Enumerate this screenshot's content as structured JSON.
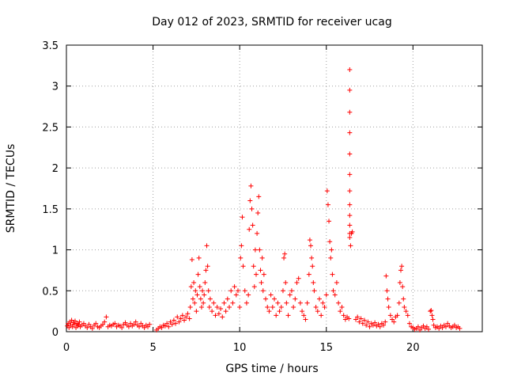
{
  "chart_data": {
    "type": "scatter",
    "title": "Day 012 of 2023, SRMTID for receiver ucag",
    "xlabel": "GPS time / hours",
    "ylabel": "SRMTID / TECUs",
    "xlim": [
      0,
      24
    ],
    "ylim": [
      0,
      3.5
    ],
    "x_ticks": [
      0,
      5,
      10,
      15,
      20
    ],
    "x_tick_labels": [
      "0",
      "5",
      "10",
      "15",
      "20"
    ],
    "y_ticks": [
      0,
      0.5,
      1,
      1.5,
      2,
      2.5,
      3,
      3.5
    ],
    "y_tick_labels": [
      "0",
      "0.5",
      "1",
      "1.5",
      "2",
      "2.5",
      "3",
      "3.5"
    ],
    "grid": true,
    "marker": "+",
    "series": [
      {
        "name": "SRMTID",
        "color": "#ff0000",
        "x": [
          0.05,
          0.1,
          0.15,
          0.2,
          0.25,
          0.3,
          0.35,
          0.4,
          0.45,
          0.5,
          0.55,
          0.6,
          0.65,
          0.7,
          0.75,
          0.8,
          0.9,
          1.0,
          1.1,
          1.2,
          1.3,
          1.4,
          1.5,
          1.6,
          1.7,
          1.8,
          1.9,
          2.0,
          2.1,
          2.2,
          2.3,
          2.4,
          2.5,
          2.6,
          2.7,
          2.8,
          2.9,
          3.0,
          3.1,
          3.2,
          3.3,
          3.4,
          3.5,
          3.6,
          3.7,
          3.8,
          3.9,
          4.0,
          4.1,
          4.2,
          4.3,
          4.4,
          4.5,
          4.6,
          4.7,
          4.8,
          5.2,
          5.3,
          5.4,
          5.5,
          5.6,
          5.7,
          5.8,
          5.9,
          6.0,
          6.1,
          6.2,
          6.3,
          6.4,
          6.5,
          6.6,
          6.7,
          6.8,
          6.9,
          7.0,
          7.1,
          7.15,
          7.2,
          7.25,
          7.3,
          7.35,
          7.4,
          7.45,
          7.5,
          7.55,
          7.6,
          7.65,
          7.7,
          7.75,
          7.8,
          7.85,
          7.9,
          7.95,
          8.0,
          8.05,
          8.1,
          8.15,
          8.2,
          8.25,
          8.3,
          8.4,
          8.5,
          8.6,
          8.7,
          8.8,
          8.9,
          9.0,
          9.1,
          9.2,
          9.3,
          9.4,
          9.5,
          9.6,
          9.7,
          9.8,
          9.9,
          10.0,
          10.05,
          10.1,
          10.15,
          10.2,
          10.3,
          10.4,
          10.5,
          10.55,
          10.6,
          10.65,
          10.7,
          10.75,
          10.8,
          10.85,
          10.9,
          10.95,
          11.0,
          11.05,
          11.1,
          11.15,
          11.2,
          11.25,
          11.3,
          11.35,
          11.4,
          11.5,
          11.6,
          11.7,
          11.8,
          11.9,
          12.0,
          12.1,
          12.2,
          12.3,
          12.4,
          12.5,
          12.55,
          12.6,
          12.65,
          12.7,
          12.8,
          12.9,
          13.0,
          13.1,
          13.2,
          13.3,
          13.4,
          13.5,
          13.6,
          13.7,
          13.8,
          13.9,
          14.0,
          14.05,
          14.1,
          14.15,
          14.2,
          14.25,
          14.3,
          14.4,
          14.5,
          14.6,
          14.7,
          14.8,
          14.9,
          15.0,
          15.05,
          15.1,
          15.15,
          15.2,
          15.25,
          15.3,
          15.35,
          15.4,
          15.5,
          15.6,
          15.7,
          15.8,
          15.9,
          16.0,
          16.1,
          16.2,
          16.3,
          16.35,
          16.35,
          16.35,
          16.35,
          16.35,
          16.35,
          16.35,
          16.35,
          16.35,
          16.35,
          16.35,
          16.35,
          16.4,
          16.45,
          16.5,
          16.7,
          16.8,
          16.9,
          17.0,
          17.1,
          17.2,
          17.3,
          17.4,
          17.5,
          17.6,
          17.7,
          17.8,
          17.9,
          18.0,
          18.1,
          18.2,
          18.3,
          18.4,
          18.45,
          18.5,
          18.55,
          18.6,
          18.7,
          18.8,
          18.9,
          19.0,
          19.1,
          19.2,
          19.25,
          19.3,
          19.35,
          19.4,
          19.45,
          19.5,
          19.6,
          19.7,
          19.8,
          19.9,
          20.0,
          20.1,
          20.2,
          20.3,
          20.4,
          20.5,
          20.6,
          20.7,
          20.8,
          20.9,
          21.0,
          21.05,
          21.1,
          21.15,
          21.2,
          21.3,
          21.4,
          21.5,
          21.6,
          21.7,
          21.8,
          21.9,
          22.0,
          22.1,
          22.2,
          22.3,
          22.4,
          22.5,
          22.6,
          22.7
        ],
        "y": [
          0.07,
          0.1,
          0.05,
          0.12,
          0.08,
          0.14,
          0.06,
          0.11,
          0.09,
          0.13,
          0.05,
          0.1,
          0.07,
          0.09,
          0.12,
          0.06,
          0.08,
          0.1,
          0.07,
          0.05,
          0.09,
          0.06,
          0.04,
          0.08,
          0.1,
          0.06,
          0.05,
          0.07,
          0.09,
          0.12,
          0.18,
          0.06,
          0.08,
          0.07,
          0.09,
          0.1,
          0.06,
          0.08,
          0.07,
          0.05,
          0.09,
          0.11,
          0.08,
          0.06,
          0.1,
          0.07,
          0.09,
          0.12,
          0.08,
          0.06,
          0.1,
          0.07,
          0.05,
          0.08,
          0.06,
          0.09,
          0.02,
          0.04,
          0.06,
          0.05,
          0.08,
          0.07,
          0.1,
          0.06,
          0.12,
          0.09,
          0.14,
          0.1,
          0.18,
          0.12,
          0.16,
          0.2,
          0.14,
          0.18,
          0.22,
          0.16,
          0.3,
          0.55,
          0.88,
          0.4,
          0.6,
          0.35,
          0.5,
          0.25,
          0.45,
          0.7,
          0.9,
          0.55,
          0.4,
          0.3,
          0.5,
          0.35,
          0.45,
          0.6,
          0.75,
          1.05,
          0.8,
          0.5,
          0.3,
          0.4,
          0.25,
          0.35,
          0.2,
          0.3,
          0.22,
          0.28,
          0.18,
          0.35,
          0.25,
          0.4,
          0.3,
          0.5,
          0.35,
          0.55,
          0.45,
          0.5,
          0.3,
          0.9,
          1.05,
          1.4,
          0.8,
          0.5,
          0.35,
          0.45,
          1.25,
          1.6,
          1.78,
          1.5,
          1.3,
          0.8,
          0.55,
          1.0,
          0.7,
          1.2,
          1.45,
          1.65,
          1.0,
          0.75,
          0.6,
          0.9,
          0.5,
          0.7,
          0.4,
          0.3,
          0.25,
          0.45,
          0.3,
          0.4,
          0.2,
          0.35,
          0.25,
          0.3,
          0.5,
          0.9,
          0.95,
          0.6,
          0.35,
          0.2,
          0.45,
          0.5,
          0.3,
          0.4,
          0.6,
          0.65,
          0.35,
          0.25,
          0.2,
          0.15,
          0.35,
          0.7,
          1.12,
          1.05,
          0.9,
          0.8,
          0.6,
          0.5,
          0.3,
          0.25,
          0.4,
          0.2,
          0.35,
          0.3,
          0.45,
          1.72,
          1.55,
          1.35,
          1.1,
          0.9,
          1.0,
          0.7,
          0.5,
          0.45,
          0.6,
          0.35,
          0.25,
          0.3,
          0.2,
          0.15,
          0.18,
          0.16,
          3.2,
          2.95,
          2.68,
          2.43,
          2.17,
          1.92,
          1.72,
          1.55,
          1.42,
          1.3,
          1.2,
          1.15,
          1.05,
          1.2,
          1.22,
          0.15,
          0.18,
          0.12,
          0.16,
          0.1,
          0.14,
          0.08,
          0.12,
          0.06,
          0.1,
          0.08,
          0.11,
          0.07,
          0.09,
          0.06,
          0.1,
          0.08,
          0.12,
          0.68,
          0.5,
          0.4,
          0.3,
          0.2,
          0.15,
          0.12,
          0.18,
          0.2,
          0.35,
          0.6,
          0.75,
          0.8,
          0.55,
          0.4,
          0.3,
          0.25,
          0.2,
          0.1,
          0.06,
          0.05,
          0.03,
          0.04,
          0.06,
          0.02,
          0.05,
          0.07,
          0.04,
          0.06,
          0.03,
          0.25,
          0.26,
          0.2,
          0.15,
          0.08,
          0.05,
          0.06,
          0.04,
          0.07,
          0.05,
          0.08,
          0.06,
          0.1,
          0.07,
          0.05,
          0.06,
          0.08,
          0.05,
          0.06,
          0.04
        ]
      }
    ]
  }
}
